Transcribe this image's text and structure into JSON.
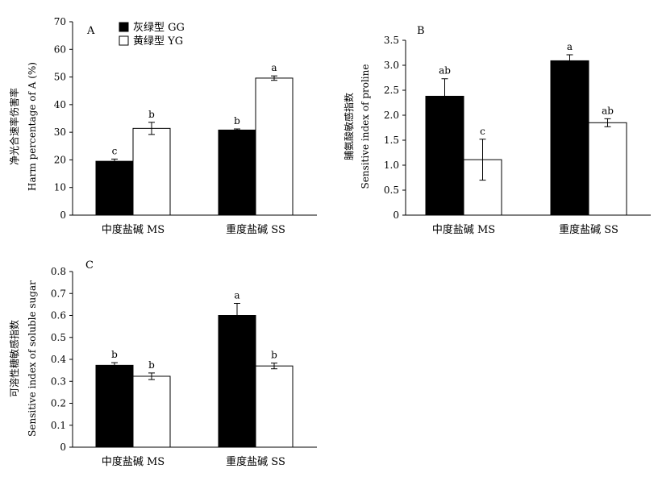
{
  "legend": {
    "entries": [
      {
        "label": "灰绿型 GG",
        "color": "#000000"
      },
      {
        "label": "黄绿型 YG",
        "color": "#ffffff"
      }
    ]
  },
  "chart_data": [
    {
      "panel": "A",
      "type": "bar",
      "categories": [
        "中度盐碱 MS",
        "重度盐碱 SS"
      ],
      "ylabel_cn": "净光合速率伤害率",
      "ylabel_en": "Harm percentage of A (%)",
      "ylim": [
        0,
        70
      ],
      "yticks": [
        "0",
        "10",
        "20",
        "30",
        "40",
        "50",
        "60",
        "70"
      ],
      "series": [
        {
          "name": "灰绿型 GG",
          "color": "#000000",
          "values": [
            19.5,
            30.8
          ],
          "errors": [
            0.8,
            0.4
          ],
          "letters": [
            "c",
            "b"
          ]
        },
        {
          "name": "黄绿型 YG",
          "color": "#ffffff",
          "values": [
            31.4,
            49.6
          ],
          "errors": [
            2.2,
            0.8
          ],
          "letters": [
            "b",
            "a"
          ]
        }
      ]
    },
    {
      "panel": "B",
      "type": "bar",
      "categories": [
        "中度盐碱 MS",
        "重度盐碱 SS"
      ],
      "ylabel_cn": "脯氨酸敏感指数",
      "ylabel_en": "Sensitive index of proline",
      "ylim": [
        0,
        3.5
      ],
      "yticks": [
        "0",
        "0.5",
        "1.0",
        "1.5",
        "2.0",
        "2.5",
        "3.0",
        "3.5"
      ],
      "series": [
        {
          "name": "灰绿型 GG",
          "color": "#000000",
          "values": [
            2.38,
            3.09
          ],
          "errors": [
            0.35,
            0.12
          ],
          "letters": [
            "ab",
            "a"
          ]
        },
        {
          "name": "黄绿型 YG",
          "color": "#ffffff",
          "values": [
            1.11,
            1.85
          ],
          "errors": [
            0.41,
            0.08
          ],
          "letters": [
            "c",
            "ab"
          ]
        }
      ]
    },
    {
      "panel": "C",
      "type": "bar",
      "categories": [
        "中度盐碱 MS",
        "重度盐碱 SS"
      ],
      "ylabel_cn": "可溶性糖敏感指数",
      "ylabel_en": "Sensitive index of soluble sugar",
      "ylim": [
        0,
        0.8
      ],
      "yticks": [
        "0",
        "0.1",
        "0.2",
        "0.3",
        "0.4",
        "0.5",
        "0.6",
        "0.7",
        "0.8"
      ],
      "series": [
        {
          "name": "灰绿型 GG",
          "color": "#000000",
          "values": [
            0.373,
            0.6
          ],
          "errors": [
            0.012,
            0.055
          ],
          "letters": [
            "b",
            "a"
          ]
        },
        {
          "name": "黄绿型 YG",
          "color": "#ffffff",
          "values": [
            0.323,
            0.37
          ],
          "errors": [
            0.015,
            0.013
          ],
          "letters": [
            "b",
            "b"
          ]
        }
      ]
    }
  ]
}
